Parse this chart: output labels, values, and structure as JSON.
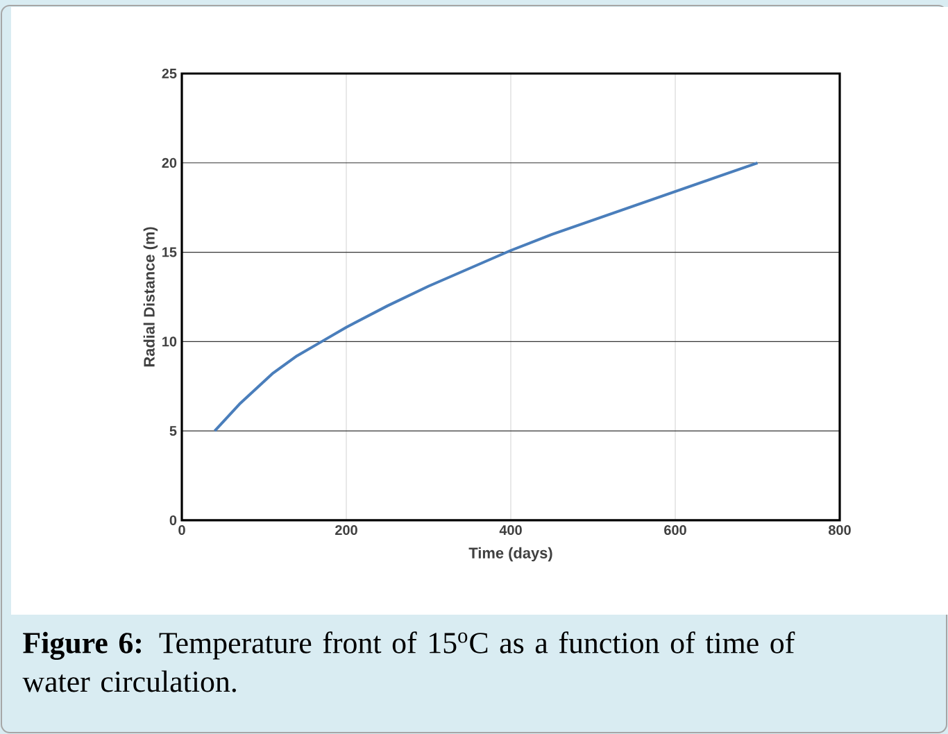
{
  "chart_data": {
    "type": "line",
    "xlabel": "Time (days)",
    "ylabel": "Radial Distance (m)",
    "x": [
      40,
      70,
      110,
      140,
      170,
      200,
      250,
      300,
      350,
      400,
      450,
      500,
      550,
      600,
      650,
      700
    ],
    "series": [
      {
        "color": "#4a7ebb",
        "values": [
          5,
          6.5,
          8.2,
          9.2,
          10,
          10.8,
          12,
          13.1,
          14.1,
          15.1,
          16,
          16.8,
          17.6,
          18.4,
          19.2,
          20
        ]
      }
    ],
    "xlim": [
      0,
      800
    ],
    "ylim": [
      0,
      25
    ],
    "xticks": [
      0,
      200,
      400,
      600,
      800
    ],
    "yticks": [
      0,
      5,
      10,
      15,
      20,
      25
    ],
    "grid": true,
    "marker": "none",
    "line_style": "solid",
    "annotations": [
      "**Figure 6:** Temperature front of 15$^{o}$C as a function of time of water circulation."
    ]
  }
}
